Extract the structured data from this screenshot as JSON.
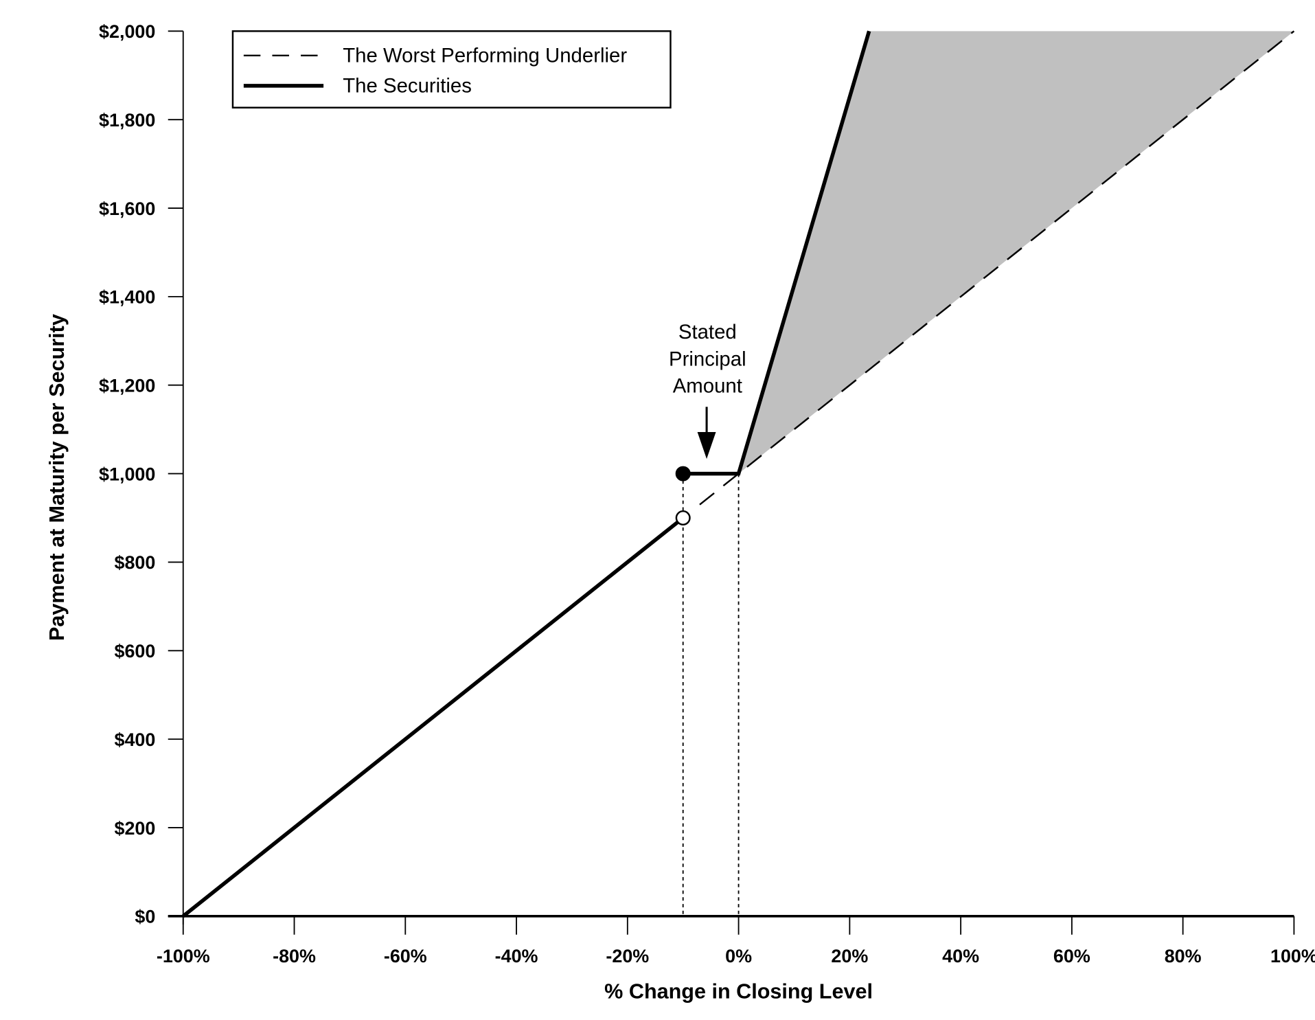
{
  "chart_data": {
    "type": "line",
    "title": "",
    "xlabel": "% Change in Closing Level",
    "ylabel": "Payment at Maturity per Security",
    "xlim": [
      -100,
      100
    ],
    "ylim": [
      0,
      2000
    ],
    "grid": false,
    "x_ticks": [
      -100,
      -80,
      -60,
      -40,
      -20,
      0,
      20,
      40,
      60,
      80,
      100
    ],
    "x_tick_labels": [
      "-100%",
      "-80%",
      "-60%",
      "-40%",
      "-20%",
      "0%",
      "20%",
      "40%",
      "60%",
      "80%",
      "100%"
    ],
    "y_ticks": [
      0,
      200,
      400,
      600,
      800,
      1000,
      1200,
      1400,
      1600,
      1800,
      2000
    ],
    "y_tick_labels": [
      "$0",
      "$200",
      "$400",
      "$600",
      "$800",
      "$1,000",
      "$1,200",
      "$1,400",
      "$1,600",
      "$1,800",
      "$2,000"
    ],
    "legend_position": "top-left",
    "series": [
      {
        "name": "The Worst Performing Underlier",
        "style": "dashed",
        "x": [
          -100,
          100
        ],
        "y": [
          0,
          2000
        ]
      },
      {
        "name": "The Securities",
        "style": "solid",
        "segments": [
          {
            "x": [
              -100,
              -10
            ],
            "y": [
              0,
              900
            ]
          },
          {
            "x": [
              -10,
              0,
              23.5
            ],
            "y": [
              1000,
              1000,
              2000
            ]
          }
        ]
      }
    ],
    "markers": [
      {
        "x": -10,
        "y": 1000,
        "fill": "filled"
      },
      {
        "x": -10,
        "y": 900,
        "fill": "open"
      }
    ],
    "reference_lines_x": [
      -10,
      0
    ],
    "shaded_region": {
      "between": "securities and underlier",
      "x_from": 0,
      "color": "#c0c0c0"
    },
    "annotation": {
      "lines": [
        "Stated",
        "Principal",
        "Amount"
      ],
      "x": -5.5,
      "y": 1000
    }
  }
}
